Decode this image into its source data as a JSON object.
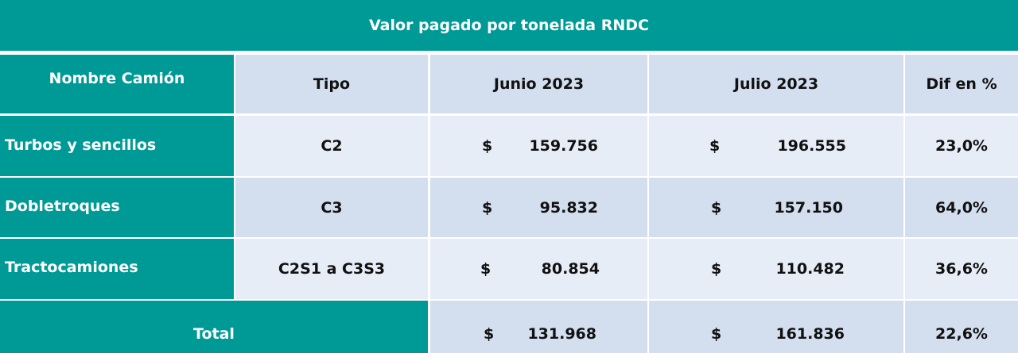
{
  "title": "Valor pagado por tonelada RNDC",
  "headers": [
    "Nombre Camión",
    "Tipo",
    "Junio 2023",
    "Julio 2023",
    "Dif en %"
  ],
  "rows": [
    {
      "name": "Turbos y sencillos",
      "tipo": "C2",
      "jun_sym": "$",
      "jun": "159.756",
      "jul_sym": "$",
      "jul": "196.555",
      "dif": "23,0%"
    },
    {
      "name": "Dobletroques",
      "tipo": "C3",
      "jun_sym": "$",
      "jun": "95.832",
      "jul_sym": "$",
      "jul": "157.150",
      "dif": "64,0%"
    },
    {
      "name": "Tractocamiones",
      "tipo": "C2S1 a C3S3",
      "jun_sym": "$",
      "jun": "80.854",
      "jul_sym": "$",
      "jul": "110.482",
      "dif": "36,6%"
    }
  ],
  "total": {
    "label": "Total",
    "jun_sym": "$",
    "jun": "131.968",
    "jul_sym": "$",
    "jul": "161.836",
    "dif": "22,6%"
  },
  "colors": {
    "teal": "#009a96",
    "header_blue": "#d3deef",
    "row_light": "#e7edf7"
  }
}
